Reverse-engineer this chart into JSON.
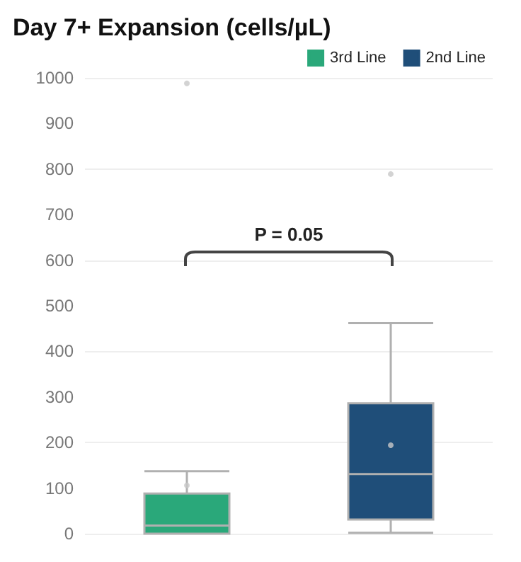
{
  "chart_data": {
    "type": "box",
    "title": "Day 7+ Expansion (cells/µL)",
    "categories": [
      null,
      null
    ],
    "series": [
      {
        "name": "3rd Line",
        "color": "#2aa87a",
        "boxes": [
          {
            "low": 0,
            "q1": 0,
            "median": 18,
            "q3": 88,
            "high": 137,
            "mean": 106,
            "outliers": [
              988
            ]
          },
          null
        ]
      },
      {
        "name": "2nd Line",
        "color": "#1f4e79",
        "boxes": [
          null,
          {
            "low": 2,
            "q1": 31,
            "median": 131,
            "q3": 286,
            "high": 462,
            "mean": 194,
            "outliers": [
              789
            ]
          }
        ]
      }
    ],
    "ylim": [
      0,
      1000
    ],
    "yticks": [
      0,
      100,
      200,
      300,
      400,
      500,
      600,
      700,
      800,
      900,
      1000
    ],
    "grid": "y",
    "legend": "top right",
    "tick_labels": "y",
    "annotations": [
      "P = 0.05"
    ]
  }
}
